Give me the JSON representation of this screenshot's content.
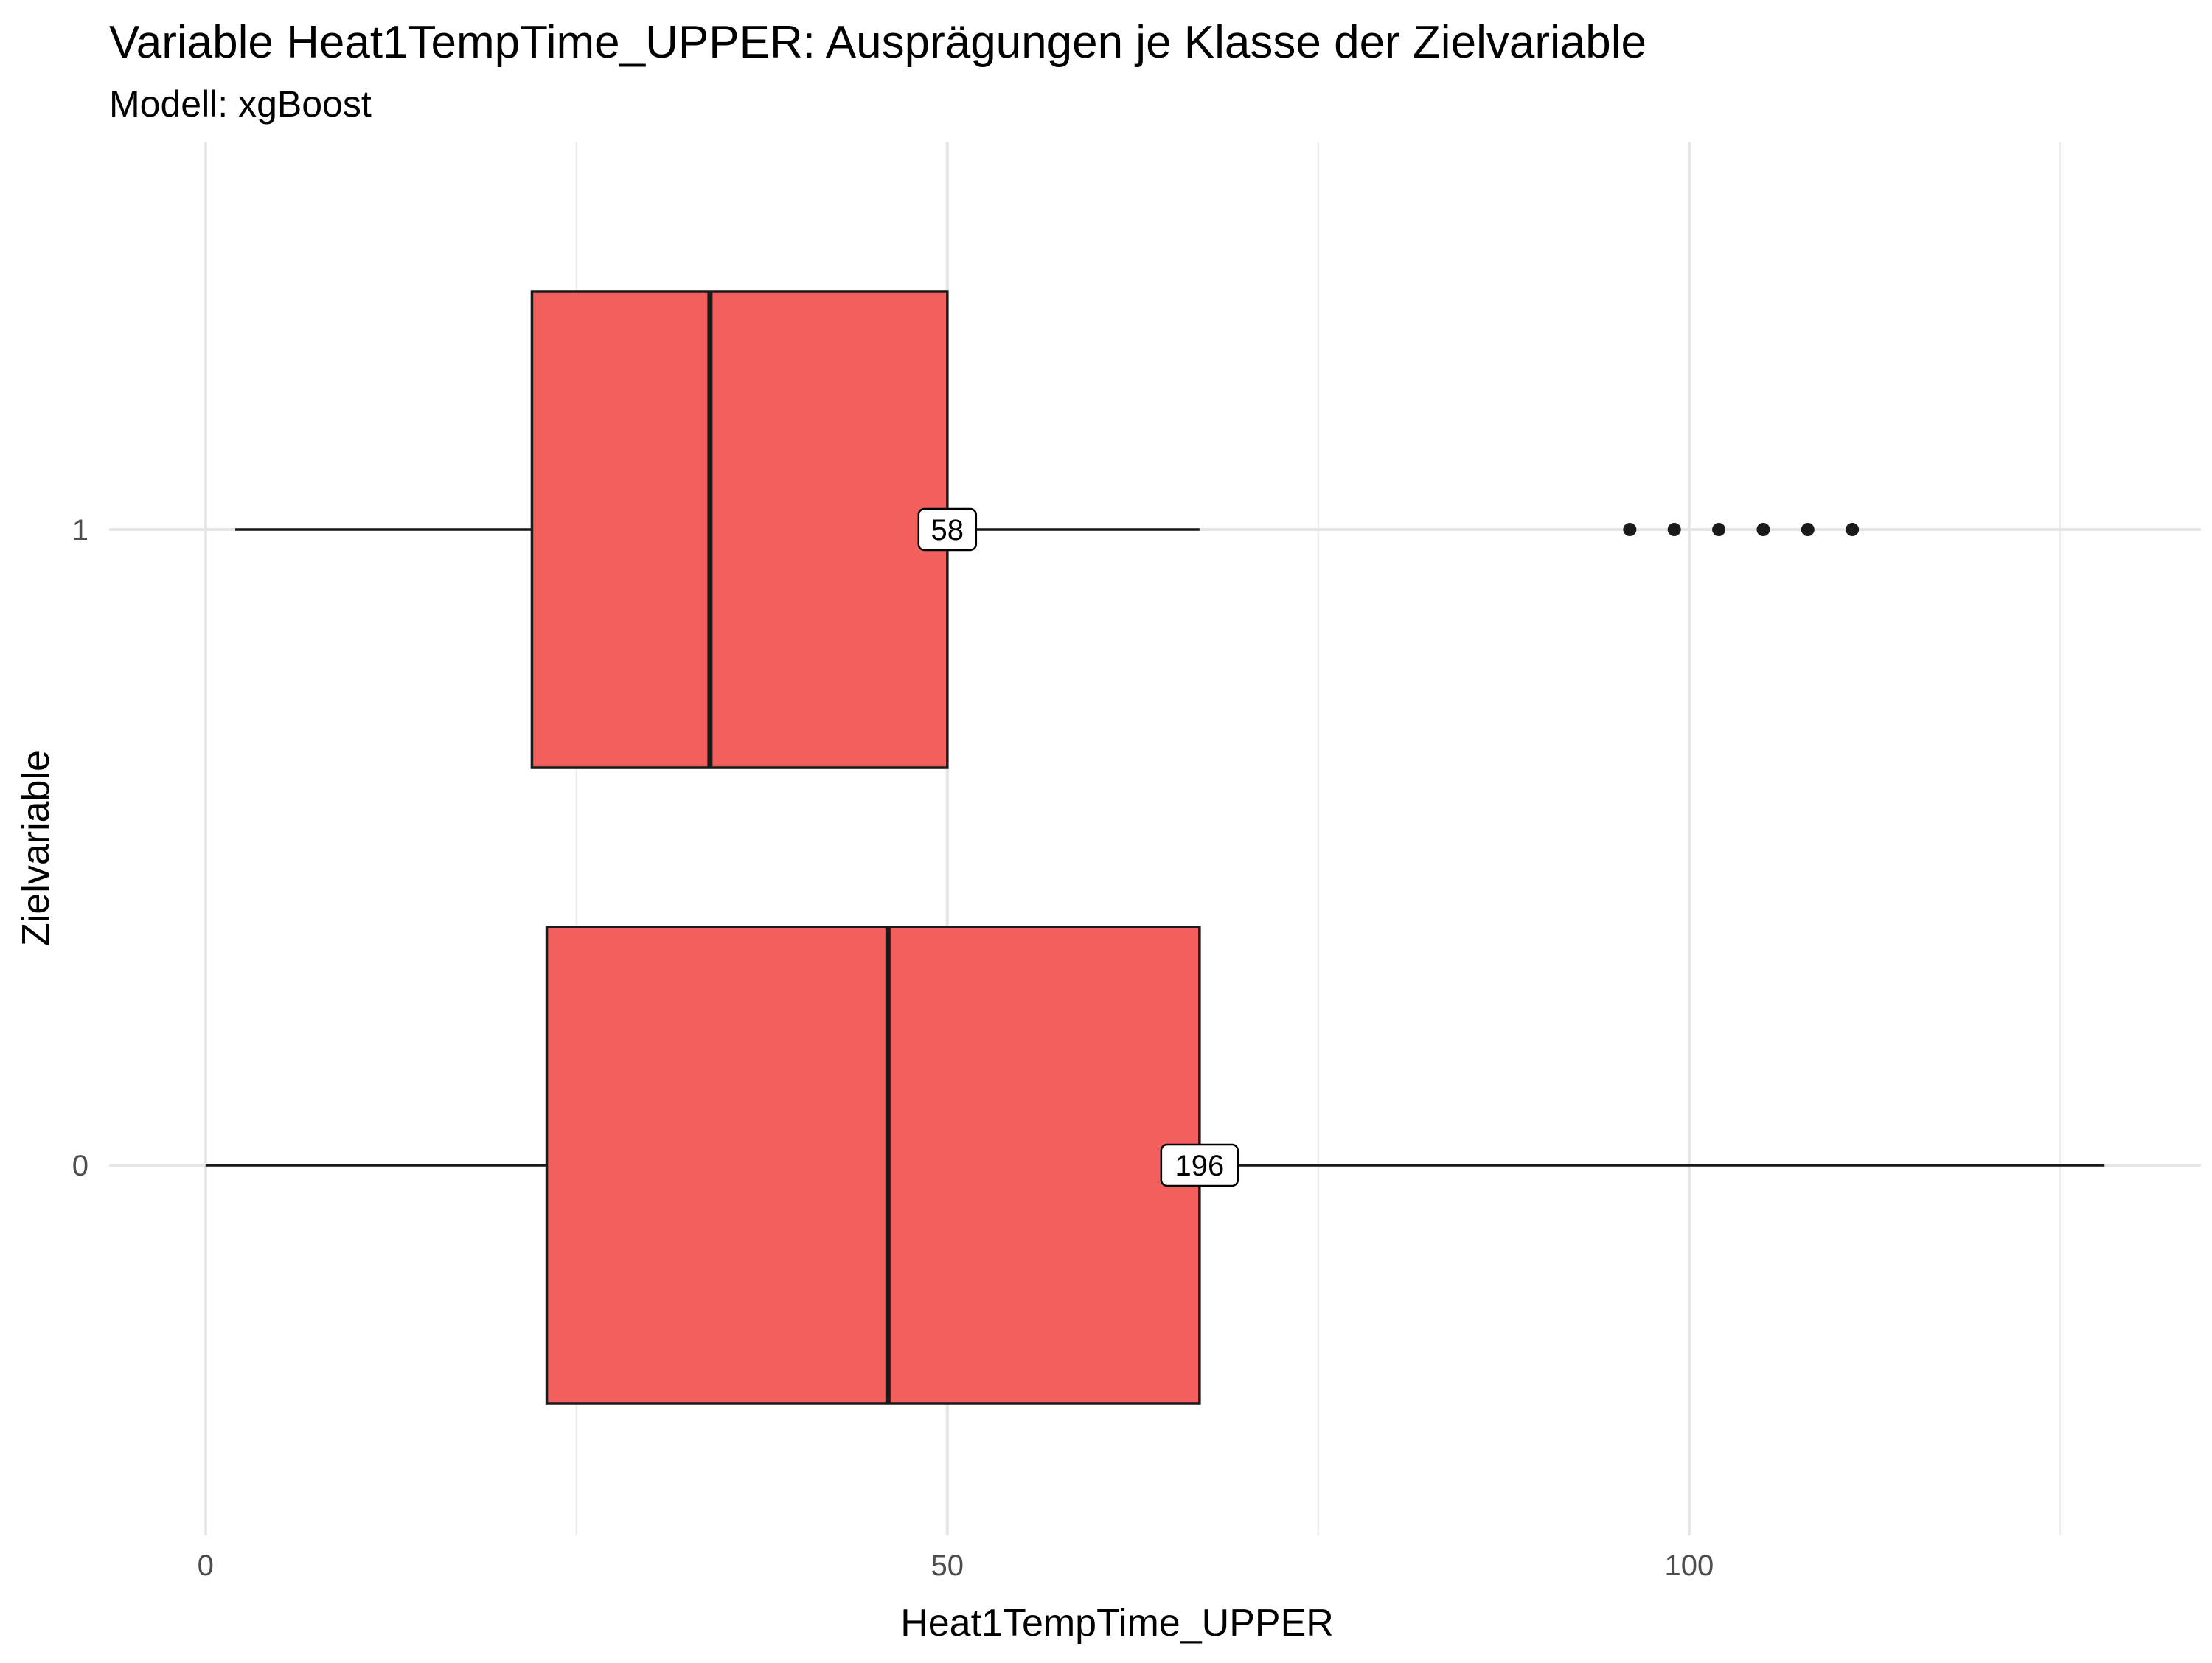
{
  "chart_data": {
    "type": "boxplot",
    "orientation": "horizontal",
    "title": "Variable Heat1TempTime_UPPER: Ausprägungen je Klasse der Zielvariable",
    "subtitle": "Modell: xgBoost",
    "xlabel": "Heat1TempTime_UPPER",
    "ylabel": "Zielvariable",
    "xlim": [
      -6.5,
      134.5
    ],
    "x_ticks": [
      0,
      50,
      100
    ],
    "x_minor_ticks": [
      25,
      75,
      125
    ],
    "categories": [
      "1",
      "0"
    ],
    "boxes": [
      {
        "category": "1",
        "whisker_low": 2,
        "q1": 22,
        "median": 34,
        "q3": 50,
        "whisker_high": 67,
        "outliers": [
          96,
          99,
          102,
          105,
          108,
          111
        ],
        "count_label": "58"
      },
      {
        "category": "0",
        "whisker_low": 0,
        "q1": 23,
        "median": 46,
        "q3": 67,
        "whisker_high": 128,
        "outliers": [],
        "count_label": "196"
      }
    ],
    "colors": {
      "box_fill": "#F25F5C",
      "box_outline": "#1a1a1a",
      "grid": "#e6e6e6"
    },
    "grid": true,
    "legend": "none"
  }
}
